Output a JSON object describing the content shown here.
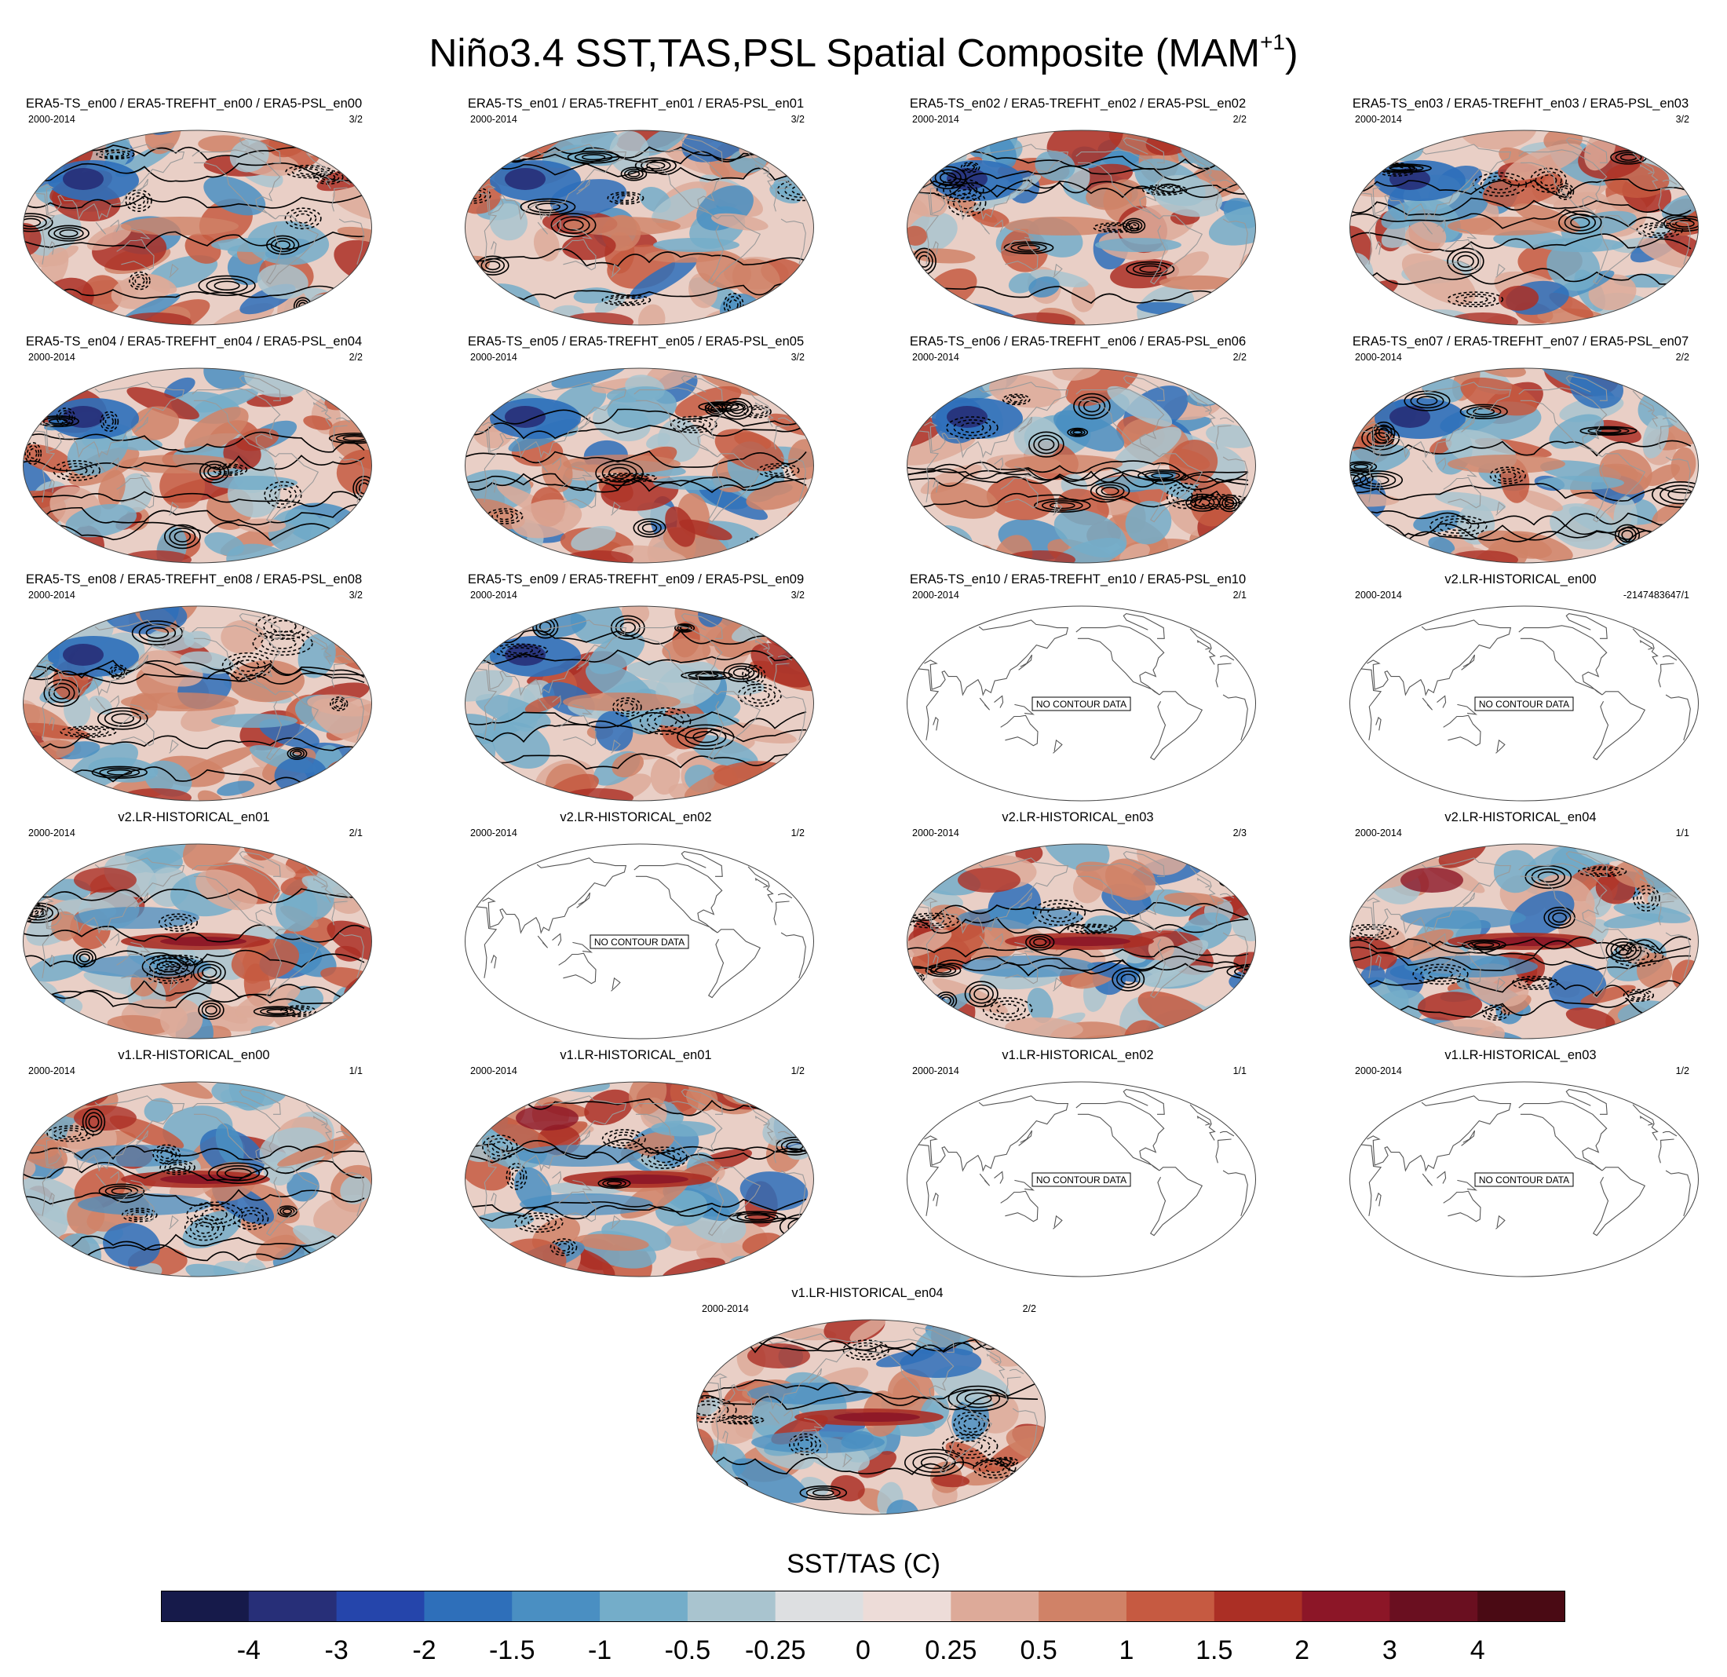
{
  "figure": {
    "title": "Niño3.4 SST,TAS,PSL Spatial Composite (MAM",
    "title_sup": "+1",
    "title_close": ")"
  },
  "chart_data": {
    "type": "heatmap",
    "description_type": "global map composites (filled SST/TAS anomalies with PSL contours)",
    "panels": [
      {
        "title": "ERA5-TS_en00 / ERA5-TREFHT_en00 / ERA5-PSL_en00",
        "years": "2000-2014",
        "count": "3/2",
        "has_data": true,
        "pattern": "obs"
      },
      {
        "title": "ERA5-TS_en01 / ERA5-TREFHT_en01 / ERA5-PSL_en01",
        "years": "2000-2014",
        "count": "3/2",
        "has_data": true,
        "pattern": "obs"
      },
      {
        "title": "ERA5-TS_en02 / ERA5-TREFHT_en02 / ERA5-PSL_en02",
        "years": "2000-2014",
        "count": "2/2",
        "has_data": true,
        "pattern": "obs"
      },
      {
        "title": "ERA5-TS_en03 / ERA5-TREFHT_en03 / ERA5-PSL_en03",
        "years": "2000-2014",
        "count": "3/2",
        "has_data": true,
        "pattern": "obs"
      },
      {
        "title": "ERA5-TS_en04 / ERA5-TREFHT_en04 / ERA5-PSL_en04",
        "years": "2000-2014",
        "count": "2/2",
        "has_data": true,
        "pattern": "obs"
      },
      {
        "title": "ERA5-TS_en05 / ERA5-TREFHT_en05 / ERA5-PSL_en05",
        "years": "2000-2014",
        "count": "3/2",
        "has_data": true,
        "pattern": "obs"
      },
      {
        "title": "ERA5-TS_en06 / ERA5-TREFHT_en06 / ERA5-PSL_en06",
        "years": "2000-2014",
        "count": "2/2",
        "has_data": true,
        "pattern": "obs"
      },
      {
        "title": "ERA5-TS_en07 / ERA5-TREFHT_en07 / ERA5-PSL_en07",
        "years": "2000-2014",
        "count": "2/2",
        "has_data": true,
        "pattern": "obs"
      },
      {
        "title": "ERA5-TS_en08 / ERA5-TREFHT_en08 / ERA5-PSL_en08",
        "years": "2000-2014",
        "count": "3/2",
        "has_data": true,
        "pattern": "obs"
      },
      {
        "title": "ERA5-TS_en09 / ERA5-TREFHT_en09 / ERA5-PSL_en09",
        "years": "2000-2014",
        "count": "3/2",
        "has_data": true,
        "pattern": "obs"
      },
      {
        "title": "ERA5-TS_en10 / ERA5-TREFHT_en10 / ERA5-PSL_en10",
        "years": "2000-2014",
        "count": "2/1",
        "has_data": false,
        "no_data_label": "NO CONTOUR DATA"
      },
      {
        "title": "v2.LR-HISTORICAL_en00",
        "years": "2000-2014",
        "count": "-2147483647/1",
        "has_data": false,
        "no_data_label": "NO CONTOUR DATA"
      },
      {
        "title": "v2.LR-HISTORICAL_en01",
        "years": "2000-2014",
        "count": "2/1",
        "has_data": true,
        "pattern": "model"
      },
      {
        "title": "v2.LR-HISTORICAL_en02",
        "years": "2000-2014",
        "count": "1/2",
        "has_data": false,
        "no_data_label": "NO CONTOUR DATA"
      },
      {
        "title": "v2.LR-HISTORICAL_en03",
        "years": "2000-2014",
        "count": "2/3",
        "has_data": true,
        "pattern": "model"
      },
      {
        "title": "v2.LR-HISTORICAL_en04",
        "years": "2000-2014",
        "count": "1/1",
        "has_data": true,
        "pattern": "model"
      },
      {
        "title": "v1.LR-HISTORICAL_en00",
        "years": "2000-2014",
        "count": "1/1",
        "has_data": true,
        "pattern": "model"
      },
      {
        "title": "v1.LR-HISTORICAL_en01",
        "years": "2000-2014",
        "count": "1/2",
        "has_data": true,
        "pattern": "model"
      },
      {
        "title": "v1.LR-HISTORICAL_en02",
        "years": "2000-2014",
        "count": "1/1",
        "has_data": false,
        "no_data_label": "NO CONTOUR DATA"
      },
      {
        "title": "v1.LR-HISTORICAL_en03",
        "years": "2000-2014",
        "count": "1/2",
        "has_data": false,
        "no_data_label": "NO CONTOUR DATA"
      },
      {
        "title": "v1.LR-HISTORICAL_en04",
        "years": "2000-2014",
        "count": "2/2",
        "has_data": true,
        "pattern": "model"
      }
    ],
    "colorbar": {
      "title": "SST/TAS (C)",
      "ticks": [
        "-4",
        "-3",
        "-2",
        "-1.5",
        "-1",
        "-0.5",
        "-0.25",
        "0",
        "0.25",
        "0.5",
        "1",
        "1.5",
        "2",
        "3",
        "4"
      ],
      "colors": [
        "#161a4a",
        "#272f78",
        "#2545ab",
        "#2e6fba",
        "#4a8fc2",
        "#74adc9",
        "#a9c4cf",
        "#dddfe1",
        "#eddcd8",
        "#ddaa99",
        "#d08267",
        "#c65a41",
        "#ab2f25",
        "#8c1627",
        "#6a0f20",
        "#4a0a14"
      ]
    }
  }
}
